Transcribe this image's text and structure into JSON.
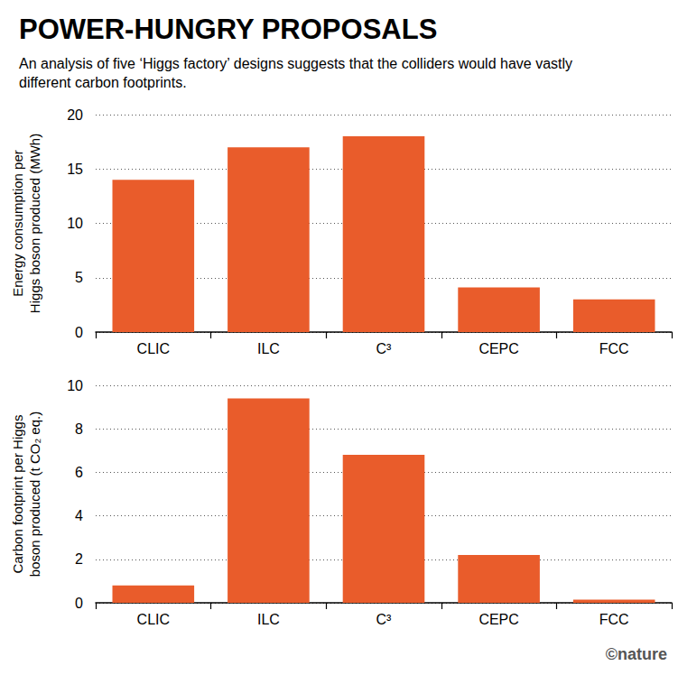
{
  "title": "POWER-HUNGRY PROPOSALS",
  "subtitle": "An analysis of five ‘Higgs factory’ designs suggests that the colliders would have vastly different carbon footprints.",
  "source": "©nature",
  "chart_data": [
    {
      "type": "bar",
      "y_label": "Energy consumption per Higgs boson produced (MWh)",
      "categories": [
        "CLIC",
        "ILC",
        "C³",
        "CEPC",
        "FCC"
      ],
      "values": [
        14,
        17,
        18,
        4.1,
        3
      ],
      "color": "#e95c2b",
      "ylim": [
        0,
        20
      ],
      "yticks": [
        0,
        5,
        10,
        15,
        20
      ],
      "grid": true
    },
    {
      "type": "bar",
      "y_label": "Carbon footprint per Higgs boson produced (t CO₂ eq.)",
      "categories": [
        "CLIC",
        "ILC",
        "C³",
        "CEPC",
        "FCC"
      ],
      "values": [
        0.8,
        9.4,
        6.8,
        2.2,
        0.15
      ],
      "color": "#e95c2b",
      "ylim": [
        0,
        10
      ],
      "yticks": [
        0,
        2,
        4,
        6,
        8,
        10
      ],
      "grid": true
    }
  ]
}
